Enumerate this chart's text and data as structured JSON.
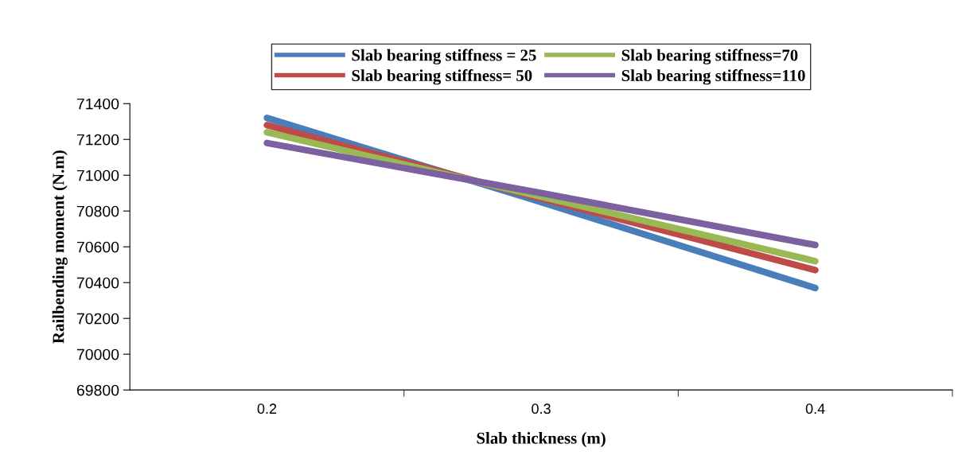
{
  "chart_data": {
    "type": "line",
    "xlabel": "Slab thickness (m)",
    "ylabel": "Railbending moment (N.m)",
    "categories": [
      "0.2",
      "0.3",
      "0.4"
    ],
    "series": [
      {
        "name": "Slab bearing stiffness = 25",
        "color": "#4a7ebb",
        "values": [
          71320,
          70850,
          70370
        ]
      },
      {
        "name": "Slab bearing stiffness= 50",
        "color": "#be4b48",
        "values": [
          71280,
          70870,
          70470
        ]
      },
      {
        "name": "Slab bearing stiffness=70",
        "color": "#98b954",
        "values": [
          71240,
          70880,
          70520
        ]
      },
      {
        "name": "Slab bearing stiffness=110",
        "color": "#7d60a0",
        "values": [
          71180,
          70900,
          70610
        ]
      }
    ],
    "ylim": [
      69800,
      71400
    ],
    "yticks": [
      69800,
      70000,
      70200,
      70400,
      70600,
      70800,
      71000,
      71200,
      71400
    ],
    "grid": false,
    "legend": "top",
    "marker": "none",
    "line_style": "solid"
  }
}
